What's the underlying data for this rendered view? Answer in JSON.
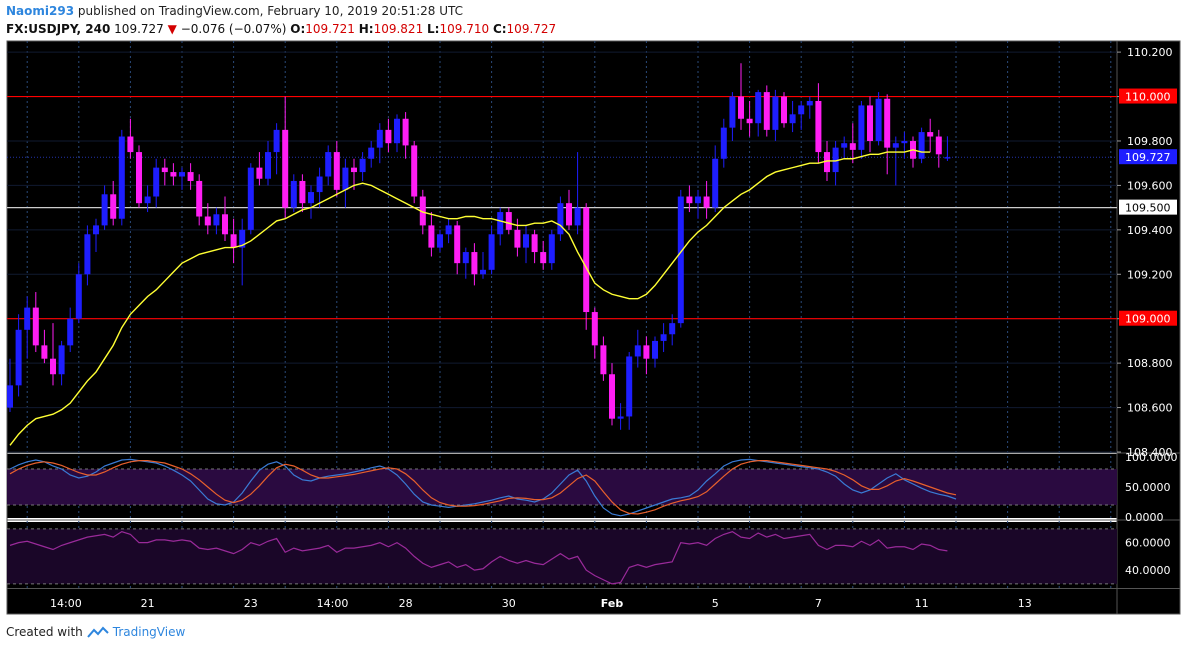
{
  "header": {
    "user": "Naomi293",
    "published_text": "published on TradingView.com, February 10, 2019 20:51:28 UTC",
    "symbol": "FX:USDJPY, 240",
    "last": "109.727",
    "change_arrow": "▼",
    "change": "−0.076 (−0.07%)",
    "open_label": "O:",
    "open": "109.721",
    "high_label": "H:",
    "high": "109.821",
    "low_label": "L:",
    "low": "109.710",
    "close_label": "C:",
    "close": "109.727"
  },
  "footer": {
    "created_with": "Created with",
    "brand": "TradingView",
    "logo_icon": "tradingview-logo-icon"
  },
  "colors": {
    "background": "#000000",
    "bull": "#1e1eff",
    "bear": "#ff1ef4",
    "ma": "#ffff33",
    "level": "#ff0000",
    "grid": "#2a4a7a",
    "stoch_k": "#3a7bd5",
    "stoch_d": "#e8602c",
    "rsi": "#9a2a9a",
    "band": "#2a0a40"
  },
  "chart_data": {
    "type": "candlestick",
    "title": "",
    "price_axis": {
      "ylim": [
        108.4,
        110.25
      ],
      "ticks": [
        "110.200",
        "110.000",
        "109.800",
        "109.600",
        "109.400",
        "109.200",
        "109.000",
        "108.800",
        "108.600",
        "108.400"
      ],
      "tick_values": [
        110.2,
        110.0,
        109.8,
        109.6,
        109.4,
        109.2,
        109.0,
        108.8,
        108.6,
        108.4
      ]
    },
    "price_labels": [
      {
        "text": "110.000",
        "value": 110.0,
        "style": "level"
      },
      {
        "text": "109.727",
        "value": 109.727,
        "style": "last"
      },
      {
        "text": "109.500",
        "value": 109.5,
        "style": "plain"
      },
      {
        "text": "109.000",
        "value": 109.0,
        "style": "level"
      }
    ],
    "horizontal_levels": [
      {
        "value": 110.0,
        "color": "#ff0000"
      },
      {
        "value": 109.5,
        "color": "#cccccc"
      },
      {
        "value": 109.0,
        "color": "#ff0000"
      }
    ],
    "x_axis_labels": [
      {
        "text": "14:00",
        "index": 6.5,
        "bold": false
      },
      {
        "text": "21",
        "index": 16,
        "bold": false
      },
      {
        "text": "23",
        "index": 28,
        "bold": false
      },
      {
        "text": "14:00",
        "index": 37.5,
        "bold": false
      },
      {
        "text": "28",
        "index": 46,
        "bold": false
      },
      {
        "text": "30",
        "index": 58,
        "bold": false
      },
      {
        "text": "Feb",
        "index": 70,
        "bold": true
      },
      {
        "text": "5",
        "index": 82,
        "bold": false
      },
      {
        "text": "7",
        "index": 94,
        "bold": false
      },
      {
        "text": "11",
        "index": 106,
        "bold": false
      },
      {
        "text": "13",
        "index": 118,
        "bold": false
      }
    ],
    "candles": [
      [
        108.6,
        108.82,
        108.58,
        108.7
      ],
      [
        108.7,
        109.02,
        108.65,
        108.95
      ],
      [
        108.95,
        109.1,
        108.82,
        109.05
      ],
      [
        109.05,
        109.12,
        108.85,
        108.88
      ],
      [
        108.88,
        108.95,
        108.8,
        108.82
      ],
      [
        108.82,
        108.98,
        108.7,
        108.75
      ],
      [
        108.75,
        108.9,
        108.7,
        108.88
      ],
      [
        108.88,
        109.05,
        108.85,
        109.0
      ],
      [
        109.0,
        109.25,
        108.98,
        109.2
      ],
      [
        109.2,
        109.42,
        109.15,
        109.38
      ],
      [
        109.38,
        109.45,
        109.3,
        109.42
      ],
      [
        109.42,
        109.6,
        109.4,
        109.56
      ],
      [
        109.56,
        109.62,
        109.42,
        109.45
      ],
      [
        109.45,
        109.85,
        109.42,
        109.82
      ],
      [
        109.82,
        109.9,
        109.72,
        109.75
      ],
      [
        109.75,
        109.78,
        109.5,
        109.52
      ],
      [
        109.52,
        109.6,
        109.48,
        109.55
      ],
      [
        109.55,
        109.72,
        109.5,
        109.68
      ],
      [
        109.68,
        109.72,
        109.6,
        109.66
      ],
      [
        109.66,
        109.7,
        109.6,
        109.64
      ],
      [
        109.64,
        109.68,
        109.58,
        109.66
      ],
      [
        109.66,
        109.7,
        109.58,
        109.62
      ],
      [
        109.62,
        109.65,
        109.42,
        109.46
      ],
      [
        109.46,
        109.52,
        109.38,
        109.42
      ],
      [
        109.42,
        109.5,
        109.38,
        109.47
      ],
      [
        109.47,
        109.55,
        109.35,
        109.38
      ],
      [
        109.38,
        109.45,
        109.25,
        109.32
      ],
      [
        109.32,
        109.45,
        109.15,
        109.4
      ],
      [
        109.4,
        109.7,
        109.38,
        109.68
      ],
      [
        109.68,
        109.75,
        109.6,
        109.63
      ],
      [
        109.63,
        109.8,
        109.6,
        109.75
      ],
      [
        109.75,
        109.88,
        109.65,
        109.85
      ],
      [
        109.85,
        110.0,
        109.45,
        109.5
      ],
      [
        109.5,
        109.65,
        109.48,
        109.62
      ],
      [
        109.62,
        109.65,
        109.48,
        109.52
      ],
      [
        109.52,
        109.6,
        109.45,
        109.57
      ],
      [
        109.57,
        109.68,
        109.5,
        109.64
      ],
      [
        109.64,
        109.78,
        109.6,
        109.75
      ],
      [
        109.75,
        109.8,
        109.55,
        109.58
      ],
      [
        109.58,
        109.72,
        109.5,
        109.68
      ],
      [
        109.68,
        109.72,
        109.58,
        109.66
      ],
      [
        109.66,
        109.75,
        109.62,
        109.72
      ],
      [
        109.72,
        109.8,
        109.68,
        109.77
      ],
      [
        109.77,
        109.88,
        109.7,
        109.85
      ],
      [
        109.85,
        109.9,
        109.75,
        109.79
      ],
      [
        109.79,
        109.92,
        109.75,
        109.9
      ],
      [
        109.9,
        109.93,
        109.72,
        109.78
      ],
      [
        109.78,
        109.8,
        109.52,
        109.55
      ],
      [
        109.55,
        109.58,
        109.38,
        109.42
      ],
      [
        109.42,
        109.48,
        109.28,
        109.32
      ],
      [
        109.32,
        109.4,
        109.3,
        109.38
      ],
      [
        109.38,
        109.45,
        109.34,
        109.42
      ],
      [
        109.42,
        109.44,
        109.2,
        109.25
      ],
      [
        109.25,
        109.32,
        109.18,
        109.3
      ],
      [
        109.3,
        109.34,
        109.15,
        109.2
      ],
      [
        109.2,
        109.3,
        109.18,
        109.22
      ],
      [
        109.22,
        109.42,
        109.2,
        109.38
      ],
      [
        109.38,
        109.5,
        109.33,
        109.48
      ],
      [
        109.48,
        109.5,
        109.38,
        109.4
      ],
      [
        109.4,
        109.45,
        109.28,
        109.32
      ],
      [
        109.32,
        109.42,
        109.25,
        109.38
      ],
      [
        109.38,
        109.4,
        109.25,
        109.3
      ],
      [
        109.3,
        109.35,
        109.22,
        109.25
      ],
      [
        109.25,
        109.4,
        109.22,
        109.38
      ],
      [
        109.38,
        109.55,
        109.35,
        109.52
      ],
      [
        109.52,
        109.58,
        109.4,
        109.42
      ],
      [
        109.42,
        109.75,
        109.38,
        109.5
      ],
      [
        109.5,
        109.52,
        108.95,
        109.03
      ],
      [
        109.03,
        109.05,
        108.82,
        108.88
      ],
      [
        108.88,
        108.92,
        108.72,
        108.75
      ],
      [
        108.75,
        108.8,
        108.52,
        108.55
      ],
      [
        108.55,
        108.62,
        108.5,
        108.56
      ],
      [
        108.56,
        108.85,
        108.5,
        108.83
      ],
      [
        108.83,
        108.95,
        108.78,
        108.88
      ],
      [
        108.88,
        108.92,
        108.75,
        108.82
      ],
      [
        108.82,
        108.92,
        108.78,
        108.9
      ],
      [
        108.9,
        108.98,
        108.85,
        108.93
      ],
      [
        108.93,
        109.02,
        108.88,
        108.98
      ],
      [
        108.98,
        109.58,
        108.96,
        109.55
      ],
      [
        109.55,
        109.6,
        109.48,
        109.52
      ],
      [
        109.52,
        109.58,
        109.45,
        109.55
      ],
      [
        109.55,
        109.62,
        109.45,
        109.5
      ],
      [
        109.5,
        109.78,
        109.48,
        109.72
      ],
      [
        109.72,
        109.9,
        109.68,
        109.86
      ],
      [
        109.86,
        110.02,
        109.8,
        110.0
      ],
      [
        110.0,
        110.15,
        109.85,
        109.9
      ],
      [
        109.9,
        109.98,
        109.82,
        109.88
      ],
      [
        109.88,
        110.03,
        109.82,
        110.02
      ],
      [
        110.02,
        110.05,
        109.82,
        109.85
      ],
      [
        109.85,
        110.03,
        109.8,
        110.0
      ],
      [
        110.0,
        110.02,
        109.86,
        109.88
      ],
      [
        109.88,
        109.98,
        109.84,
        109.92
      ],
      [
        109.92,
        109.98,
        109.85,
        109.96
      ],
      [
        109.96,
        110.0,
        109.9,
        109.98
      ],
      [
        109.98,
        110.06,
        109.7,
        109.75
      ],
      [
        109.75,
        109.8,
        109.62,
        109.66
      ],
      [
        109.66,
        109.8,
        109.6,
        109.77
      ],
      [
        109.77,
        109.82,
        109.72,
        109.79
      ],
      [
        109.79,
        109.88,
        109.7,
        109.76
      ],
      [
        109.76,
        109.98,
        109.72,
        109.96
      ],
      [
        109.96,
        110.0,
        109.75,
        109.8
      ],
      [
        109.8,
        110.02,
        109.78,
        109.99
      ],
      [
        109.99,
        110.01,
        109.65,
        109.77
      ],
      [
        109.77,
        109.82,
        109.6,
        109.79
      ],
      [
        109.79,
        109.84,
        109.72,
        109.8
      ],
      [
        109.8,
        109.82,
        109.68,
        109.72
      ],
      [
        109.72,
        109.86,
        109.7,
        109.84
      ],
      [
        109.84,
        109.9,
        109.75,
        109.82
      ],
      [
        109.82,
        109.85,
        109.68,
        109.74
      ],
      [
        109.721,
        109.821,
        109.71,
        109.727
      ]
    ],
    "moving_average": [
      108.43,
      108.48,
      108.52,
      108.55,
      108.56,
      108.57,
      108.59,
      108.62,
      108.67,
      108.72,
      108.76,
      108.82,
      108.88,
      108.96,
      109.02,
      109.06,
      109.1,
      109.13,
      109.17,
      109.21,
      109.25,
      109.27,
      109.29,
      109.3,
      109.31,
      109.32,
      109.32,
      109.33,
      109.35,
      109.38,
      109.41,
      109.44,
      109.45,
      109.47,
      109.49,
      109.5,
      109.52,
      109.54,
      109.56,
      109.58,
      109.6,
      109.61,
      109.6,
      109.58,
      109.56,
      109.54,
      109.52,
      109.5,
      109.48,
      109.47,
      109.46,
      109.45,
      109.45,
      109.46,
      109.46,
      109.45,
      109.45,
      109.44,
      109.43,
      109.42,
      109.42,
      109.43,
      109.43,
      109.44,
      109.42,
      109.38,
      109.3,
      109.23,
      109.16,
      109.13,
      109.11,
      109.1,
      109.09,
      109.09,
      109.11,
      109.15,
      109.2,
      109.25,
      109.3,
      109.35,
      109.39,
      109.42,
      109.46,
      109.5,
      109.53,
      109.56,
      109.58,
      109.61,
      109.64,
      109.66,
      109.67,
      109.68,
      109.69,
      109.7,
      109.7,
      109.71,
      109.71,
      109.72,
      109.72,
      109.73,
      109.74,
      109.74,
      109.75,
      109.75,
      109.75,
      109.76,
      109.75,
      109.75
    ],
    "stochastic": {
      "ticks": [
        "100.0000",
        "50.0000",
        "0.0000"
      ],
      "tick_values": [
        100,
        50,
        0
      ],
      "band": [
        20,
        80
      ],
      "k": [
        80,
        87,
        92,
        95,
        92,
        85,
        80,
        70,
        65,
        68,
        75,
        85,
        90,
        95,
        96,
        94,
        92,
        90,
        85,
        78,
        70,
        60,
        45,
        30,
        22,
        20,
        25,
        40,
        60,
        78,
        88,
        92,
        85,
        70,
        62,
        60,
        65,
        68,
        70,
        72,
        75,
        78,
        82,
        85,
        80,
        70,
        55,
        38,
        25,
        20,
        18,
        16,
        18,
        20,
        22,
        25,
        28,
        32,
        35,
        30,
        28,
        25,
        30,
        40,
        55,
        70,
        78,
        60,
        35,
        15,
        5,
        2,
        5,
        10,
        15,
        20,
        25,
        30,
        32,
        35,
        45,
        60,
        72,
        85,
        92,
        95,
        96,
        94,
        92,
        90,
        88,
        86,
        84,
        82,
        80,
        75,
        68,
        55,
        45,
        40,
        45,
        55,
        65,
        72,
        62,
        55,
        48,
        42,
        38,
        35,
        30
      ],
      "d": [
        72,
        80,
        86,
        90,
        92,
        90,
        86,
        80,
        74,
        70,
        70,
        75,
        82,
        88,
        92,
        94,
        94,
        92,
        90,
        85,
        80,
        72,
        62,
        50,
        38,
        28,
        24,
        28,
        38,
        52,
        68,
        82,
        88,
        85,
        78,
        70,
        65,
        65,
        67,
        69,
        71,
        74,
        77,
        80,
        82,
        80,
        72,
        60,
        45,
        32,
        24,
        20,
        18,
        18,
        19,
        21,
        24,
        27,
        31,
        32,
        31,
        29,
        29,
        32,
        40,
        52,
        64,
        70,
        60,
        42,
        25,
        12,
        6,
        5,
        8,
        12,
        18,
        23,
        27,
        30,
        34,
        42,
        55,
        68,
        80,
        88,
        92,
        94,
        94,
        92,
        90,
        88,
        86,
        84,
        82,
        80,
        76,
        70,
        62,
        52,
        46,
        46,
        52,
        60,
        64,
        60,
        55,
        50,
        45,
        40,
        37
      ]
    },
    "rsi": {
      "ticks": [
        "60.0000",
        "40.0000"
      ],
      "tick_values": [
        60,
        40
      ],
      "band": [
        30,
        70
      ],
      "values": [
        58,
        60,
        61,
        59,
        57,
        55,
        58,
        60,
        62,
        64,
        65,
        66,
        64,
        68,
        66,
        60,
        60,
        62,
        62,
        61,
        62,
        61,
        56,
        55,
        56,
        54,
        52,
        55,
        60,
        58,
        61,
        63,
        53,
        56,
        54,
        55,
        56,
        58,
        53,
        56,
        56,
        57,
        58,
        60,
        57,
        60,
        56,
        50,
        45,
        42,
        44,
        46,
        42,
        44,
        40,
        41,
        46,
        50,
        47,
        45,
        47,
        45,
        44,
        48,
        52,
        48,
        50,
        40,
        36,
        33,
        30,
        31,
        42,
        44,
        42,
        44,
        45,
        46,
        60,
        59,
        60,
        58,
        63,
        66,
        68,
        64,
        63,
        67,
        64,
        66,
        63,
        64,
        65,
        66,
        58,
        55,
        58,
        58,
        57,
        61,
        58,
        62,
        56,
        57,
        57,
        55,
        59,
        58,
        55,
        54
      ]
    }
  }
}
